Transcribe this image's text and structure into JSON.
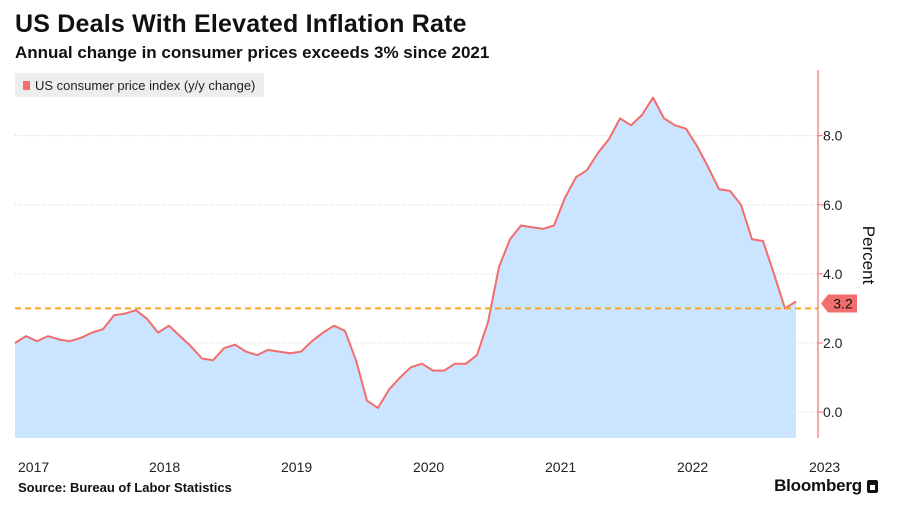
{
  "title": "US Deals With Elevated Inflation Rate",
  "subtitle": "Annual change in consumer prices exceeds 3% since 2021",
  "source": "Source: Bureau of Labor Statistics",
  "brand": "Bloomberg",
  "colors": {
    "line": "#f26d6d",
    "area": "#cbe4ff",
    "threshold": "#f5a623",
    "axis": "#f26d6d",
    "grid": "#cfcfcf"
  },
  "chart_data": {
    "type": "area",
    "series": [
      {
        "name": "US consumer price index (y/y change)",
        "start": "2017-01",
        "frequency": "monthly",
        "values": [
          2.0,
          2.2,
          2.05,
          2.2,
          2.1,
          2.05,
          2.15,
          2.3,
          2.4,
          2.8,
          2.85,
          2.95,
          2.7,
          2.3,
          2.5,
          2.2,
          1.9,
          1.55,
          1.5,
          1.85,
          1.95,
          1.75,
          1.65,
          1.8,
          1.75,
          1.7,
          1.75,
          2.05,
          2.3,
          2.5,
          2.35,
          1.5,
          0.33,
          0.12,
          0.65,
          1.0,
          1.3,
          1.4,
          1.2,
          1.2,
          1.4,
          1.4,
          1.65,
          2.6,
          4.2,
          5.0,
          5.4,
          5.35,
          5.3,
          5.4,
          6.2,
          6.8,
          7.0,
          7.5,
          7.9,
          8.5,
          8.3,
          8.6,
          9.1,
          8.5,
          8.3,
          8.2,
          7.7,
          7.1,
          6.45,
          6.4,
          6.0,
          5.0,
          4.95,
          4.0,
          3.0,
          3.2
        ]
      }
    ],
    "x_ticks": [
      "2017",
      "2018",
      "2019",
      "2020",
      "2021",
      "2022",
      "2023"
    ],
    "y_ticks": [
      "0.0",
      "2.0",
      "4.0",
      "6.0",
      "8.0"
    ],
    "ylim": [
      -0.75,
      9.9
    ],
    "ylabel": "Percent",
    "threshold": 3,
    "last_value_label": "3.2",
    "grid": true,
    "legend_position": "top-left"
  }
}
